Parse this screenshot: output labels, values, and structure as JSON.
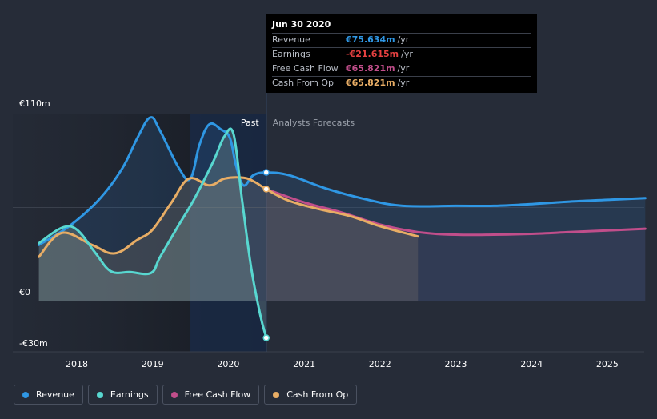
{
  "chart_data": {
    "type": "line",
    "title": "",
    "xlabel": "",
    "ylabel": "",
    "y_unit": "€",
    "ylim": [
      -30,
      110
    ],
    "xlim": [
      2017.5,
      2025.5
    ],
    "y_tick_labels": [
      {
        "value": 110,
        "label": "€110m"
      },
      {
        "value": 0,
        "label": "€0"
      },
      {
        "value": -30,
        "label": "-€30m"
      }
    ],
    "x_ticks": [
      2018,
      2019,
      2020,
      2021,
      2022,
      2023,
      2024,
      2025
    ],
    "x_tick_labels": [
      "2018",
      "2019",
      "2020",
      "2021",
      "2022",
      "2023",
      "2024",
      "2025"
    ],
    "past_label": "Past",
    "forecast_label": "Analysts Forecasts",
    "highlight_start": 2019.5,
    "divider_x": 2020.5,
    "series": [
      {
        "name": "Revenue",
        "color": "#2f97e4",
        "points": [
          [
            2017.5,
            33
          ],
          [
            2017.9,
            44
          ],
          [
            2018.3,
            60
          ],
          [
            2018.6,
            78
          ],
          [
            2018.8,
            96
          ],
          [
            2018.97,
            108
          ],
          [
            2019.1,
            100
          ],
          [
            2019.35,
            78
          ],
          [
            2019.5,
            72
          ],
          [
            2019.62,
            92
          ],
          [
            2019.75,
            104
          ],
          [
            2019.9,
            101
          ],
          [
            2020.02,
            96
          ],
          [
            2020.1,
            80
          ],
          [
            2020.2,
            68
          ],
          [
            2020.33,
            74
          ],
          [
            2020.5,
            75.6
          ],
          [
            2020.8,
            74
          ],
          [
            2021.3,
            66
          ],
          [
            2021.8,
            60
          ],
          [
            2022.3,
            56
          ],
          [
            2023.0,
            56
          ],
          [
            2023.5,
            56
          ],
          [
            2024.0,
            57
          ],
          [
            2024.5,
            58.5
          ],
          [
            2025.0,
            59.5
          ],
          [
            2025.5,
            60.5
          ]
        ]
      },
      {
        "name": "Earnings",
        "color": "#58d7d0",
        "points": [
          [
            2017.5,
            34
          ],
          [
            2017.8,
            43
          ],
          [
            2018.0,
            42
          ],
          [
            2018.25,
            28
          ],
          [
            2018.45,
            17.5
          ],
          [
            2018.7,
            17
          ],
          [
            2018.98,
            16.5
          ],
          [
            2019.1,
            26
          ],
          [
            2019.35,
            45
          ],
          [
            2019.55,
            60
          ],
          [
            2019.8,
            82
          ],
          [
            2019.95,
            97
          ],
          [
            2020.07,
            98
          ],
          [
            2020.18,
            60
          ],
          [
            2020.3,
            20
          ],
          [
            2020.42,
            -8
          ],
          [
            2020.5,
            -21.6
          ]
        ]
      },
      {
        "name": "Free Cash Flow",
        "color": "#c14e8b",
        "points": [
          [
            2020.5,
            65.8
          ],
          [
            2021.0,
            58
          ],
          [
            2021.5,
            52
          ],
          [
            2022.0,
            45
          ],
          [
            2022.5,
            40.5
          ],
          [
            2023.0,
            39
          ],
          [
            2023.5,
            39
          ],
          [
            2024.0,
            39.5
          ],
          [
            2024.5,
            40.5
          ],
          [
            2025.0,
            41.5
          ],
          [
            2025.5,
            42.5
          ]
        ]
      },
      {
        "name": "Cash From Op",
        "color": "#e8ad65",
        "points": [
          [
            2017.5,
            26
          ],
          [
            2017.8,
            40
          ],
          [
            2018.2,
            33
          ],
          [
            2018.5,
            28
          ],
          [
            2018.8,
            36
          ],
          [
            2019.0,
            42
          ],
          [
            2019.25,
            58
          ],
          [
            2019.48,
            72
          ],
          [
            2019.75,
            68
          ],
          [
            2019.95,
            72
          ],
          [
            2020.2,
            72.5
          ],
          [
            2020.35,
            70
          ],
          [
            2020.5,
            65.8
          ],
          [
            2020.8,
            59
          ],
          [
            2021.2,
            54
          ],
          [
            2021.6,
            50
          ],
          [
            2022.0,
            44
          ],
          [
            2022.5,
            38
          ]
        ]
      }
    ],
    "markers": [
      {
        "series": "Revenue",
        "x": 2020.5,
        "y": 75.634
      },
      {
        "series": "Earnings",
        "x": 2020.5,
        "y": -21.615
      },
      {
        "series": "Cash From Op",
        "x": 2020.5,
        "y": 65.821
      }
    ]
  },
  "tooltip": {
    "date": "Jun 30 2020",
    "rows": [
      {
        "label": "Revenue",
        "value": "€75.634m",
        "unit": "/yr",
        "color": "#2f97e4"
      },
      {
        "label": "Earnings",
        "value": "-€21.615m",
        "unit": "/yr",
        "color": "#e64141"
      },
      {
        "label": "Free Cash Flow",
        "value": "€65.821m",
        "unit": "/yr",
        "color": "#c14e8b"
      },
      {
        "label": "Cash From Op",
        "value": "€65.821m",
        "unit": "/yr",
        "color": "#e8ad65"
      }
    ]
  },
  "legend": [
    {
      "label": "Revenue",
      "color": "#2f97e4"
    },
    {
      "label": "Earnings",
      "color": "#58d7d0"
    },
    {
      "label": "Free Cash Flow",
      "color": "#c14e8b"
    },
    {
      "label": "Cash From Op",
      "color": "#e8ad65"
    }
  ]
}
